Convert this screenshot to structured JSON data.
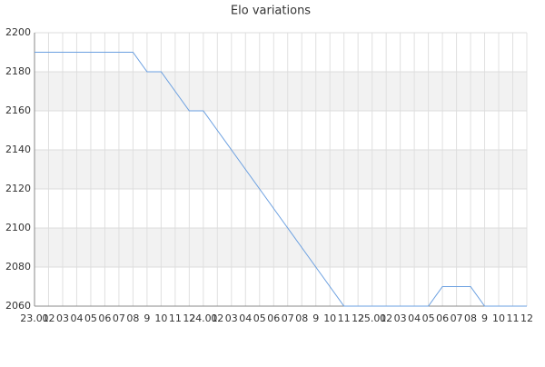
{
  "chart_data": {
    "type": "line",
    "title": "Elo variations",
    "categories": [
      "23.01",
      "02",
      "03",
      "04",
      "05",
      "06",
      "07",
      "08",
      "9",
      "10",
      "11",
      "12",
      "24.01",
      "02",
      "03",
      "04",
      "05",
      "06",
      "07",
      "08",
      "9",
      "10",
      "11",
      "12",
      "25.01",
      "02",
      "03",
      "04",
      "05",
      "06",
      "07",
      "08",
      "9",
      "10",
      "11",
      "12"
    ],
    "series": [
      {
        "name": "Elo",
        "color": "#6a9fe0",
        "values": [
          2190,
          2190,
          2190,
          2190,
          2190,
          2190,
          2190,
          2190,
          2180,
          2180,
          2170,
          2160,
          2160,
          2150,
          2140,
          2130,
          2120,
          2110,
          2100,
          2090,
          2080,
          2070,
          2060,
          2060,
          2060,
          2060,
          2060,
          2060,
          2060,
          2070,
          2070,
          2070,
          2060,
          2060,
          2060,
          2060
        ]
      }
    ],
    "ylim": [
      2060,
      2200
    ],
    "yticks": [
      2060,
      2080,
      2100,
      2120,
      2140,
      2160,
      2180,
      2200
    ],
    "grid": true
  }
}
